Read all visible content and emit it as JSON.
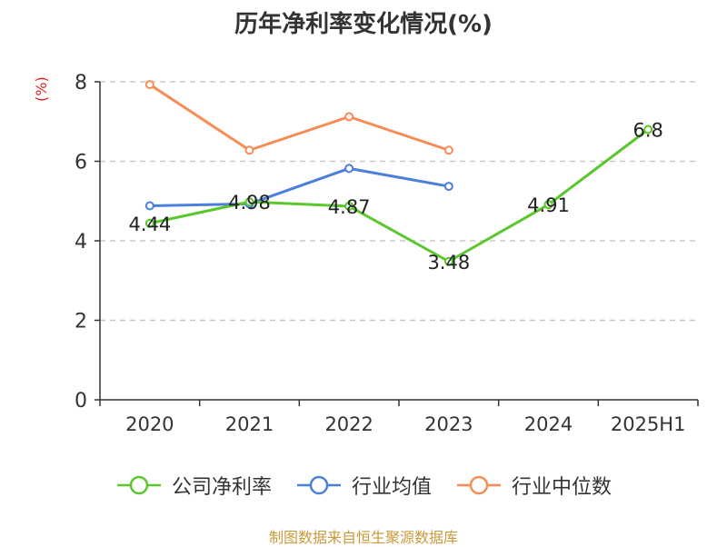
{
  "chart_data": {
    "type": "line",
    "title": "历年净利率变化情况(%)",
    "unit_label": "(%)",
    "categories": [
      "2020",
      "2021",
      "2022",
      "2023",
      "2024",
      "2025H1"
    ],
    "ylim": [
      0,
      8
    ],
    "yticks": [
      "0",
      "2",
      "4",
      "6",
      "8"
    ],
    "grid": true,
    "legend_position": "bottom",
    "series": [
      {
        "name": "公司净利率",
        "color": "#5ac72c",
        "values": [
          4.44,
          4.98,
          4.87,
          3.48,
          4.91,
          6.8
        ],
        "labels": [
          "4.44",
          "4.98",
          "4.87",
          "3.48",
          "4.91",
          "6.8"
        ]
      },
      {
        "name": "行业均值",
        "color": "#4a7fdc",
        "values": [
          4.88,
          4.93,
          5.82,
          5.37,
          null,
          null
        ]
      },
      {
        "name": "行业中位数",
        "color": "#f88c55",
        "values": [
          7.93,
          6.28,
          7.12,
          6.28,
          null,
          null
        ]
      }
    ]
  },
  "colors": {
    "unit_label": "#e0201e",
    "source": "#c99a3b",
    "axis": "#333333",
    "grid": "#c8c8c8"
  },
  "source_text": "制图数据来自恒生聚源数据库"
}
